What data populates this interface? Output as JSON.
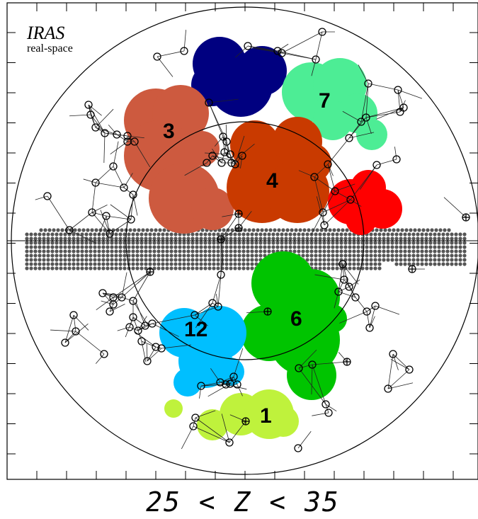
{
  "figure": {
    "title": "IRAS",
    "subtitle": "real-space",
    "caption": "25 < Z < 35"
  },
  "clusters": [
    {
      "id": "1",
      "label": "1",
      "color": "#bff23c"
    },
    {
      "id": "3",
      "label": "3",
      "color": "#cd5a3f"
    },
    {
      "id": "4",
      "label": "4",
      "color": "#c93a00"
    },
    {
      "id": "6",
      "label": "6",
      "color": "#00c400"
    },
    {
      "id": "7",
      "label": "7",
      "color": "#4ded95"
    },
    {
      "id": "12",
      "label": "12",
      "color": "#00bfff"
    },
    {
      "id": "navy",
      "label": "",
      "color": "#000080"
    },
    {
      "id": "red",
      "label": "",
      "color": "#ff0000"
    }
  ],
  "colors": {
    "zone_of_avoidance": "#555555",
    "lines": "#000000",
    "background": "#ffffff"
  }
}
